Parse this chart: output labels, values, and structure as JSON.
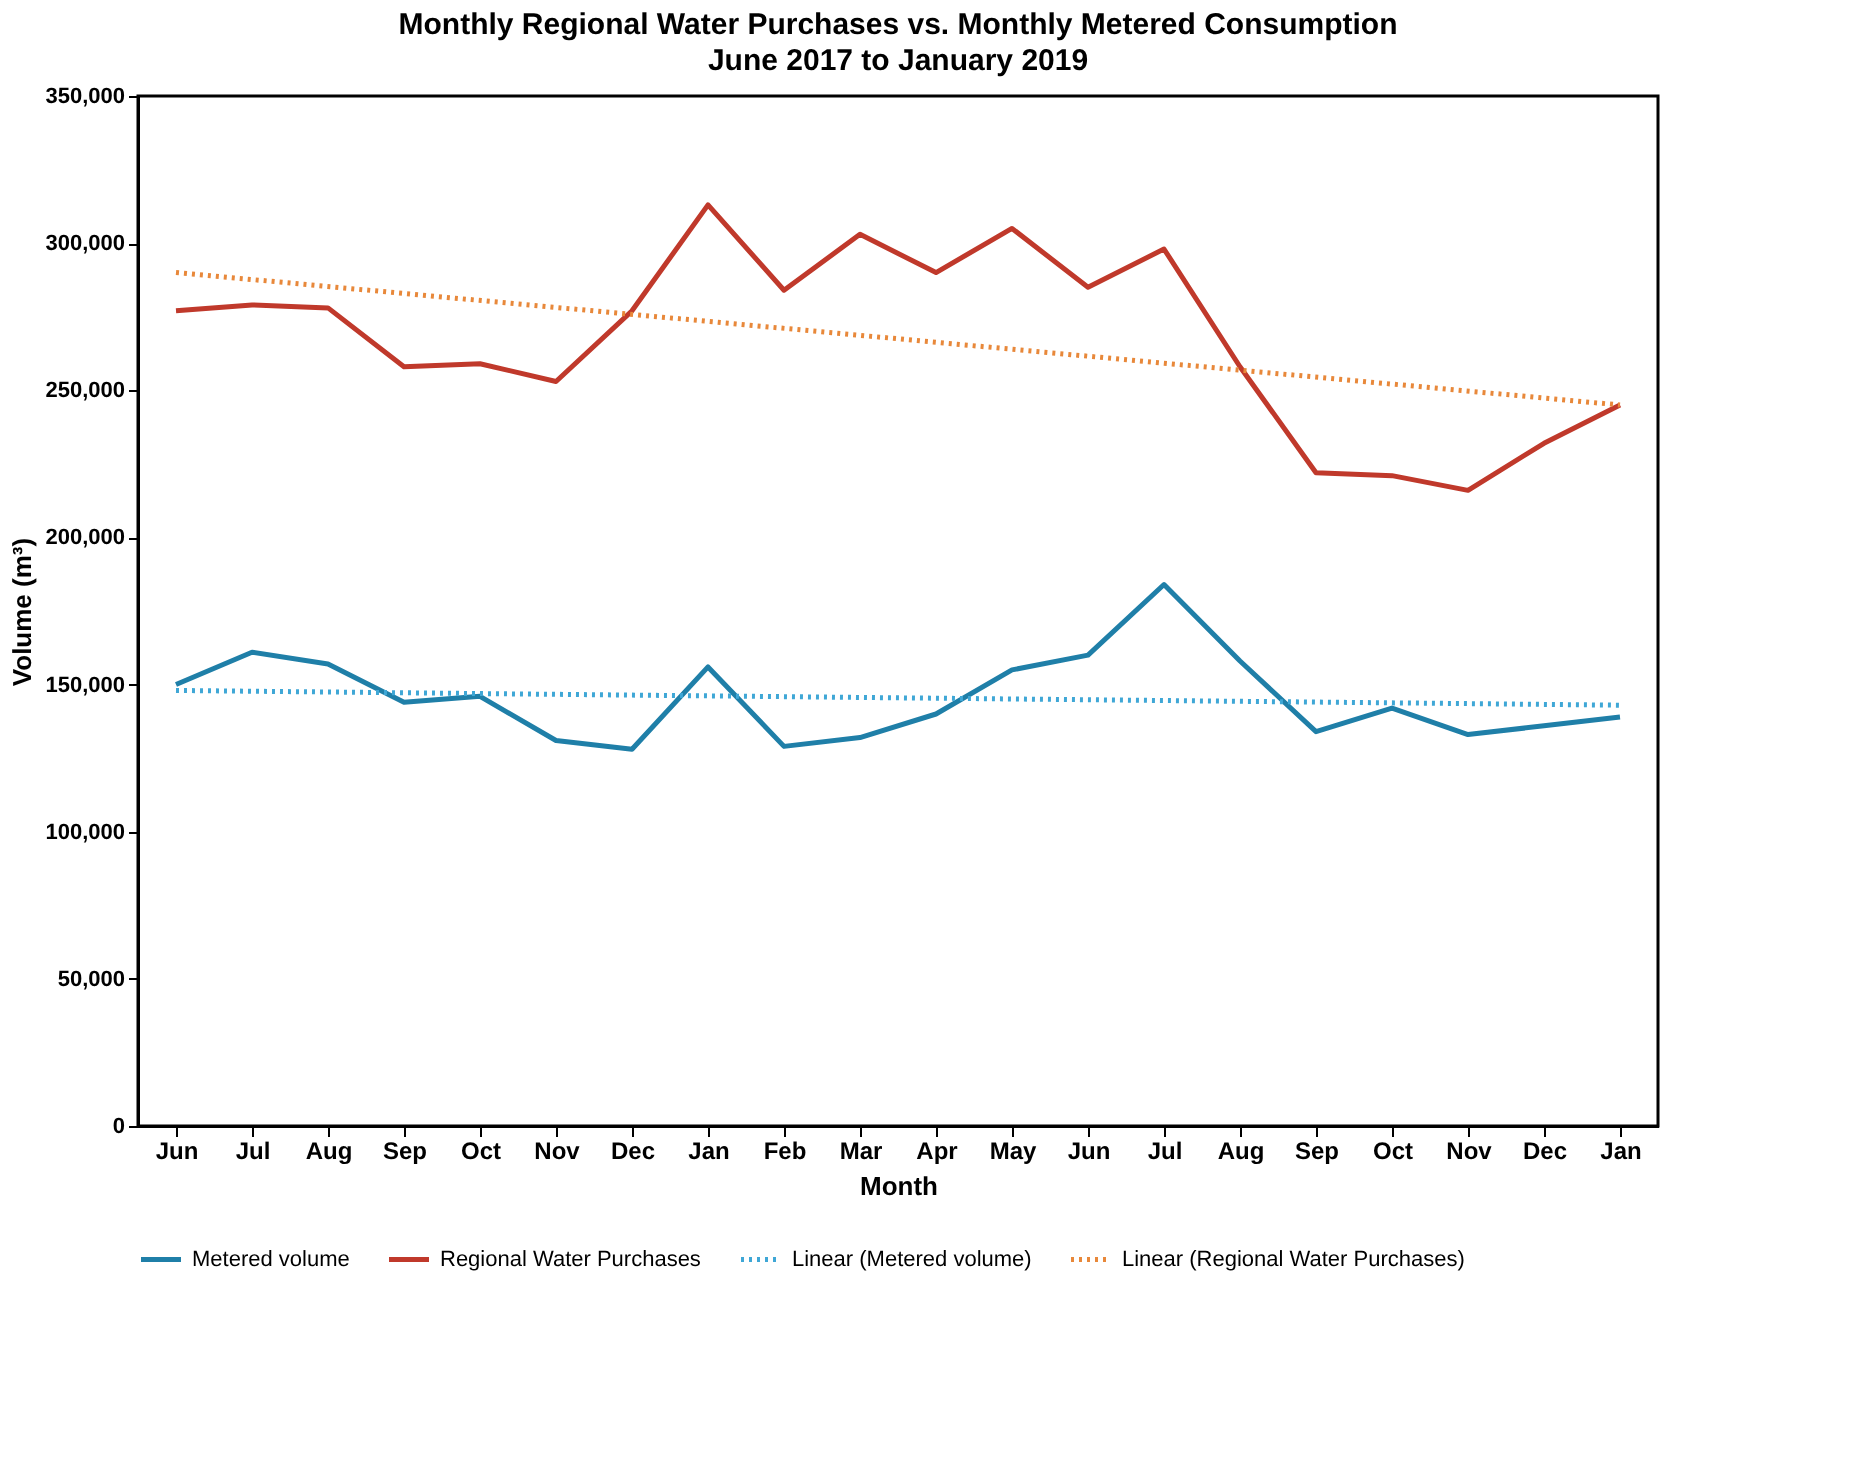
{
  "chart_data": {
    "type": "line",
    "title": "Monthly Regional Water Purchases vs. Monthly Metered Consumption",
    "subtitle": "June 2017 to January 2019",
    "xlabel": "Month",
    "ylabel": "Volume (m³)",
    "categories": [
      "Jun",
      "Jul",
      "Aug",
      "Sep",
      "Oct",
      "Nov",
      "Dec",
      "Jan",
      "Feb",
      "Mar",
      "Apr",
      "May",
      "Jun",
      "Jul",
      "Aug",
      "Sep",
      "Oct",
      "Nov",
      "Dec",
      "Jan"
    ],
    "series": [
      {
        "name": "Metered volume",
        "color": "#1f7fa8",
        "line_style": "solid",
        "values": [
          150000,
          161000,
          157000,
          144000,
          146000,
          131000,
          128000,
          156000,
          129000,
          132000,
          140000,
          155000,
          160000,
          184000,
          158000,
          134000,
          142000,
          133000,
          136000,
          139000
        ]
      },
      {
        "name": "Regional Water Purchases",
        "color": "#c0392b",
        "line_style": "solid",
        "values": [
          277000,
          279000,
          278000,
          258000,
          259000,
          253000,
          277000,
          313000,
          284000,
          303000,
          290000,
          305000,
          285000,
          298000,
          258000,
          222000,
          221000,
          216000,
          232000,
          245000
        ]
      },
      {
        "name": "Linear (Metered volume)",
        "color": "#3fa7d6",
        "line_style": "dotted",
        "values": [
          148000,
          null,
          null,
          null,
          null,
          null,
          null,
          null,
          null,
          null,
          null,
          null,
          null,
          null,
          null,
          null,
          null,
          null,
          null,
          143000
        ]
      },
      {
        "name": "Linear (Regional Water Purchases)",
        "color": "#e8883a",
        "line_style": "dotted",
        "values": [
          290000,
          null,
          null,
          null,
          null,
          null,
          null,
          null,
          null,
          null,
          null,
          null,
          null,
          null,
          null,
          null,
          null,
          null,
          null,
          245000
        ]
      }
    ],
    "ylim": [
      0,
      350000
    ],
    "yticks": [
      {
        "value": 0,
        "label": "0"
      },
      {
        "value": 50000,
        "label": "50,000"
      },
      {
        "value": 100000,
        "label": "100,000"
      },
      {
        "value": 150000,
        "label": "150,000"
      },
      {
        "value": 200000,
        "label": "200,000"
      },
      {
        "value": 250000,
        "label": "250,000"
      },
      {
        "value": 300000,
        "label": "300,000"
      },
      {
        "value": 350000,
        "label": "350,000"
      }
    ],
    "grid": false,
    "legend": "bottom",
    "marker": "none"
  }
}
